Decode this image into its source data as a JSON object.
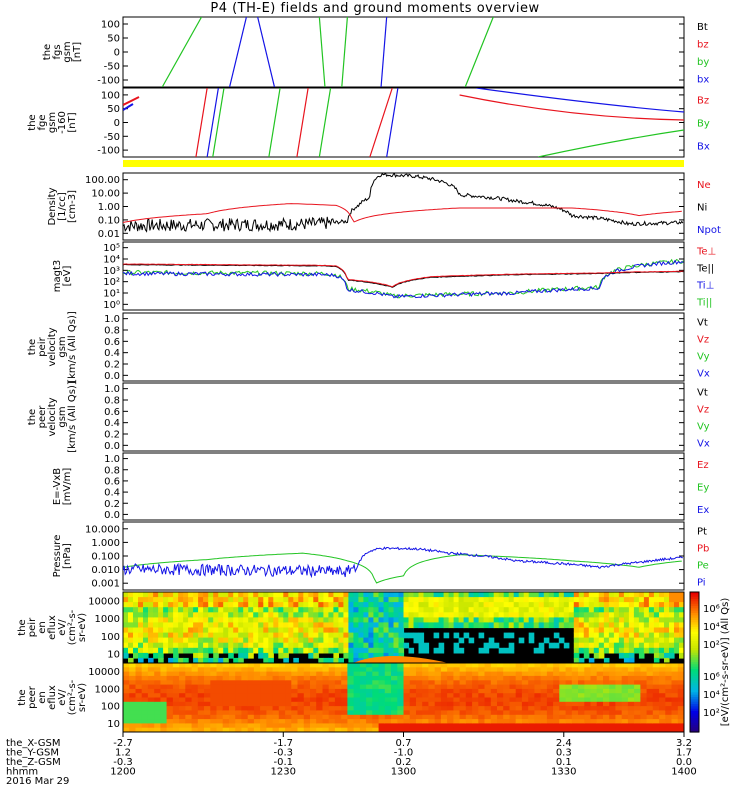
{
  "title": "P4 (TH-E) fields and ground moments overview",
  "colors": {
    "black": "#000000",
    "red": "#e8141e",
    "green": "#22c422",
    "blue": "#1414e6",
    "yellow": "#ffff00"
  },
  "panels": [
    {
      "id": "p1",
      "ylabel": [
        "the",
        "fgs",
        "gsm",
        "[nT]"
      ],
      "ticks": [
        "100",
        "50",
        "0",
        "-50",
        "-100"
      ],
      "legend": [
        {
          "text": "Bt",
          "color": "black"
        },
        {
          "text": "bz",
          "color": "red"
        },
        {
          "text": "by",
          "color": "green"
        },
        {
          "text": "bx",
          "color": "blue"
        }
      ]
    },
    {
      "id": "p2",
      "ylabel": [
        "the",
        "fge",
        "gsm",
        "-160",
        "[nT]"
      ],
      "ticks": [
        "100",
        "50",
        "0",
        "-50",
        "-100"
      ],
      "legend": [
        {
          "text": "Bz",
          "color": "red"
        },
        {
          "text": "By",
          "color": "green"
        },
        {
          "text": "Bx",
          "color": "blue"
        }
      ]
    },
    {
      "id": "p3",
      "ylabel": [
        "Density",
        "[1/cc]",
        "[cm-3]"
      ],
      "ticks": [
        "100.00",
        "10.00",
        "1.00",
        "0.10",
        "0.01"
      ],
      "legend": [
        {
          "text": "Ne",
          "color": "red"
        },
        {
          "text": "Ni",
          "color": "black"
        },
        {
          "text": "Npot",
          "color": "blue"
        }
      ]
    },
    {
      "id": "p4",
      "ylabel": [
        "magt3",
        "[eV]"
      ],
      "ticks": [
        "10⁵",
        "10⁴",
        "10³",
        "10²",
        "10¹",
        "10⁰"
      ],
      "legend": [
        {
          "text": "Te⊥",
          "color": "red"
        },
        {
          "text": "Te||",
          "color": "black"
        },
        {
          "text": "Ti⊥",
          "color": "blue"
        },
        {
          "text": "Ti||",
          "color": "green"
        }
      ]
    },
    {
      "id": "p5",
      "ylabel": [
        "the",
        "peir",
        "velocity",
        "gsm",
        "[km/s (All Qs)]"
      ],
      "ticks": [
        "1.0",
        "0.8",
        "0.6",
        "0.4",
        "0.2",
        "0.0"
      ],
      "legend": [
        {
          "text": "Vt",
          "color": "black"
        },
        {
          "text": "Vz",
          "color": "red"
        },
        {
          "text": "Vy",
          "color": "green"
        },
        {
          "text": "Vx",
          "color": "blue"
        }
      ]
    },
    {
      "id": "p6",
      "ylabel": [
        "the",
        "peer",
        "velocity",
        "gsm",
        "[km/s (All Qs)]"
      ],
      "ticks": [
        "1.0",
        "0.8",
        "0.6",
        "0.4",
        "0.2",
        "0.0"
      ],
      "legend": [
        {
          "text": "Vt",
          "color": "black"
        },
        {
          "text": "Vz",
          "color": "red"
        },
        {
          "text": "Vy",
          "color": "green"
        },
        {
          "text": "Vx",
          "color": "blue"
        }
      ]
    },
    {
      "id": "p7",
      "ylabel": [
        "E=-VxB",
        "[mV/m]"
      ],
      "ticks": [
        "1.0",
        "0.8",
        "0.6",
        "0.4",
        "0.2",
        "0.0"
      ],
      "legend": [
        {
          "text": "Ez",
          "color": "red"
        },
        {
          "text": "Ey",
          "color": "green"
        },
        {
          "text": "Ex",
          "color": "blue"
        }
      ]
    },
    {
      "id": "p8",
      "ylabel": [
        "Pressure",
        "[nPa]"
      ],
      "ticks": [
        "10.000",
        "1.000",
        "0.100",
        "0.010",
        "0.001"
      ],
      "legend": [
        {
          "text": "Pt",
          "color": "black"
        },
        {
          "text": "Pb",
          "color": "red"
        },
        {
          "text": "Pe",
          "color": "green"
        },
        {
          "text": "Pi",
          "color": "blue"
        }
      ]
    },
    {
      "id": "p9",
      "ylabel": [
        "the",
        "peir",
        "en",
        "eflux",
        "eV/",
        "(cm²-s-",
        "sr-eV)"
      ],
      "ticks": [
        "10000",
        "1000",
        "100",
        "10"
      ],
      "legend": []
    },
    {
      "id": "p10",
      "ylabel": [
        "the",
        "peer",
        "en",
        "eflux",
        "eV/",
        "(cm²-s-",
        "sr-eV)"
      ],
      "ticks": [
        "10000",
        "1000",
        "100",
        "10"
      ],
      "legend": []
    }
  ],
  "colorbar": {
    "label": "[eV/(cm²-s-sr-eV)] (All Qs)",
    "upper_ticks": [
      "10⁶",
      "10⁴",
      "10²"
    ],
    "lower_ticks": [
      "10⁶",
      "10⁴",
      "10²"
    ]
  },
  "xaxis": {
    "rows": [
      {
        "label": "the_X-GSM",
        "values": [
          "-2.7",
          "-1.7",
          "0.7",
          "2.4",
          "3.2"
        ]
      },
      {
        "label": "the_Y-GSM",
        "values": [
          "1.2",
          "-0.3",
          "-1.0",
          "0.3",
          "1.7"
        ]
      },
      {
        "label": "the_Z-GSM",
        "values": [
          "-0.3",
          "-0.1",
          "0.2",
          "0.1",
          "0.0"
        ]
      },
      {
        "label": "hhmm",
        "values": [
          "1200",
          "1230",
          "1300",
          "1330",
          "1400"
        ]
      }
    ],
    "date": "2016 Mar 29"
  },
  "chart_data": {
    "type": "line",
    "x_hhmm": [
      "1200",
      "1230",
      "1300",
      "1330",
      "1400"
    ],
    "density": {
      "Ne": [
        0.05,
        1.8,
        0.1,
        1.0,
        0.5
      ],
      "Ni": [
        0.05,
        0.05,
        200,
        2.0,
        0.1
      ]
    },
    "temperature": {
      "Te": [
        2000,
        1500,
        30,
        500,
        6000
      ],
      "Ti": [
        1500,
        1500,
        8,
        300,
        4000
      ]
    },
    "pressure": {
      "Pe": [
        0.02,
        0.15,
        0.002,
        0.1,
        0.05
      ],
      "Pi": [
        0.01,
        0.015,
        0.3,
        0.03,
        0.1
      ]
    }
  }
}
